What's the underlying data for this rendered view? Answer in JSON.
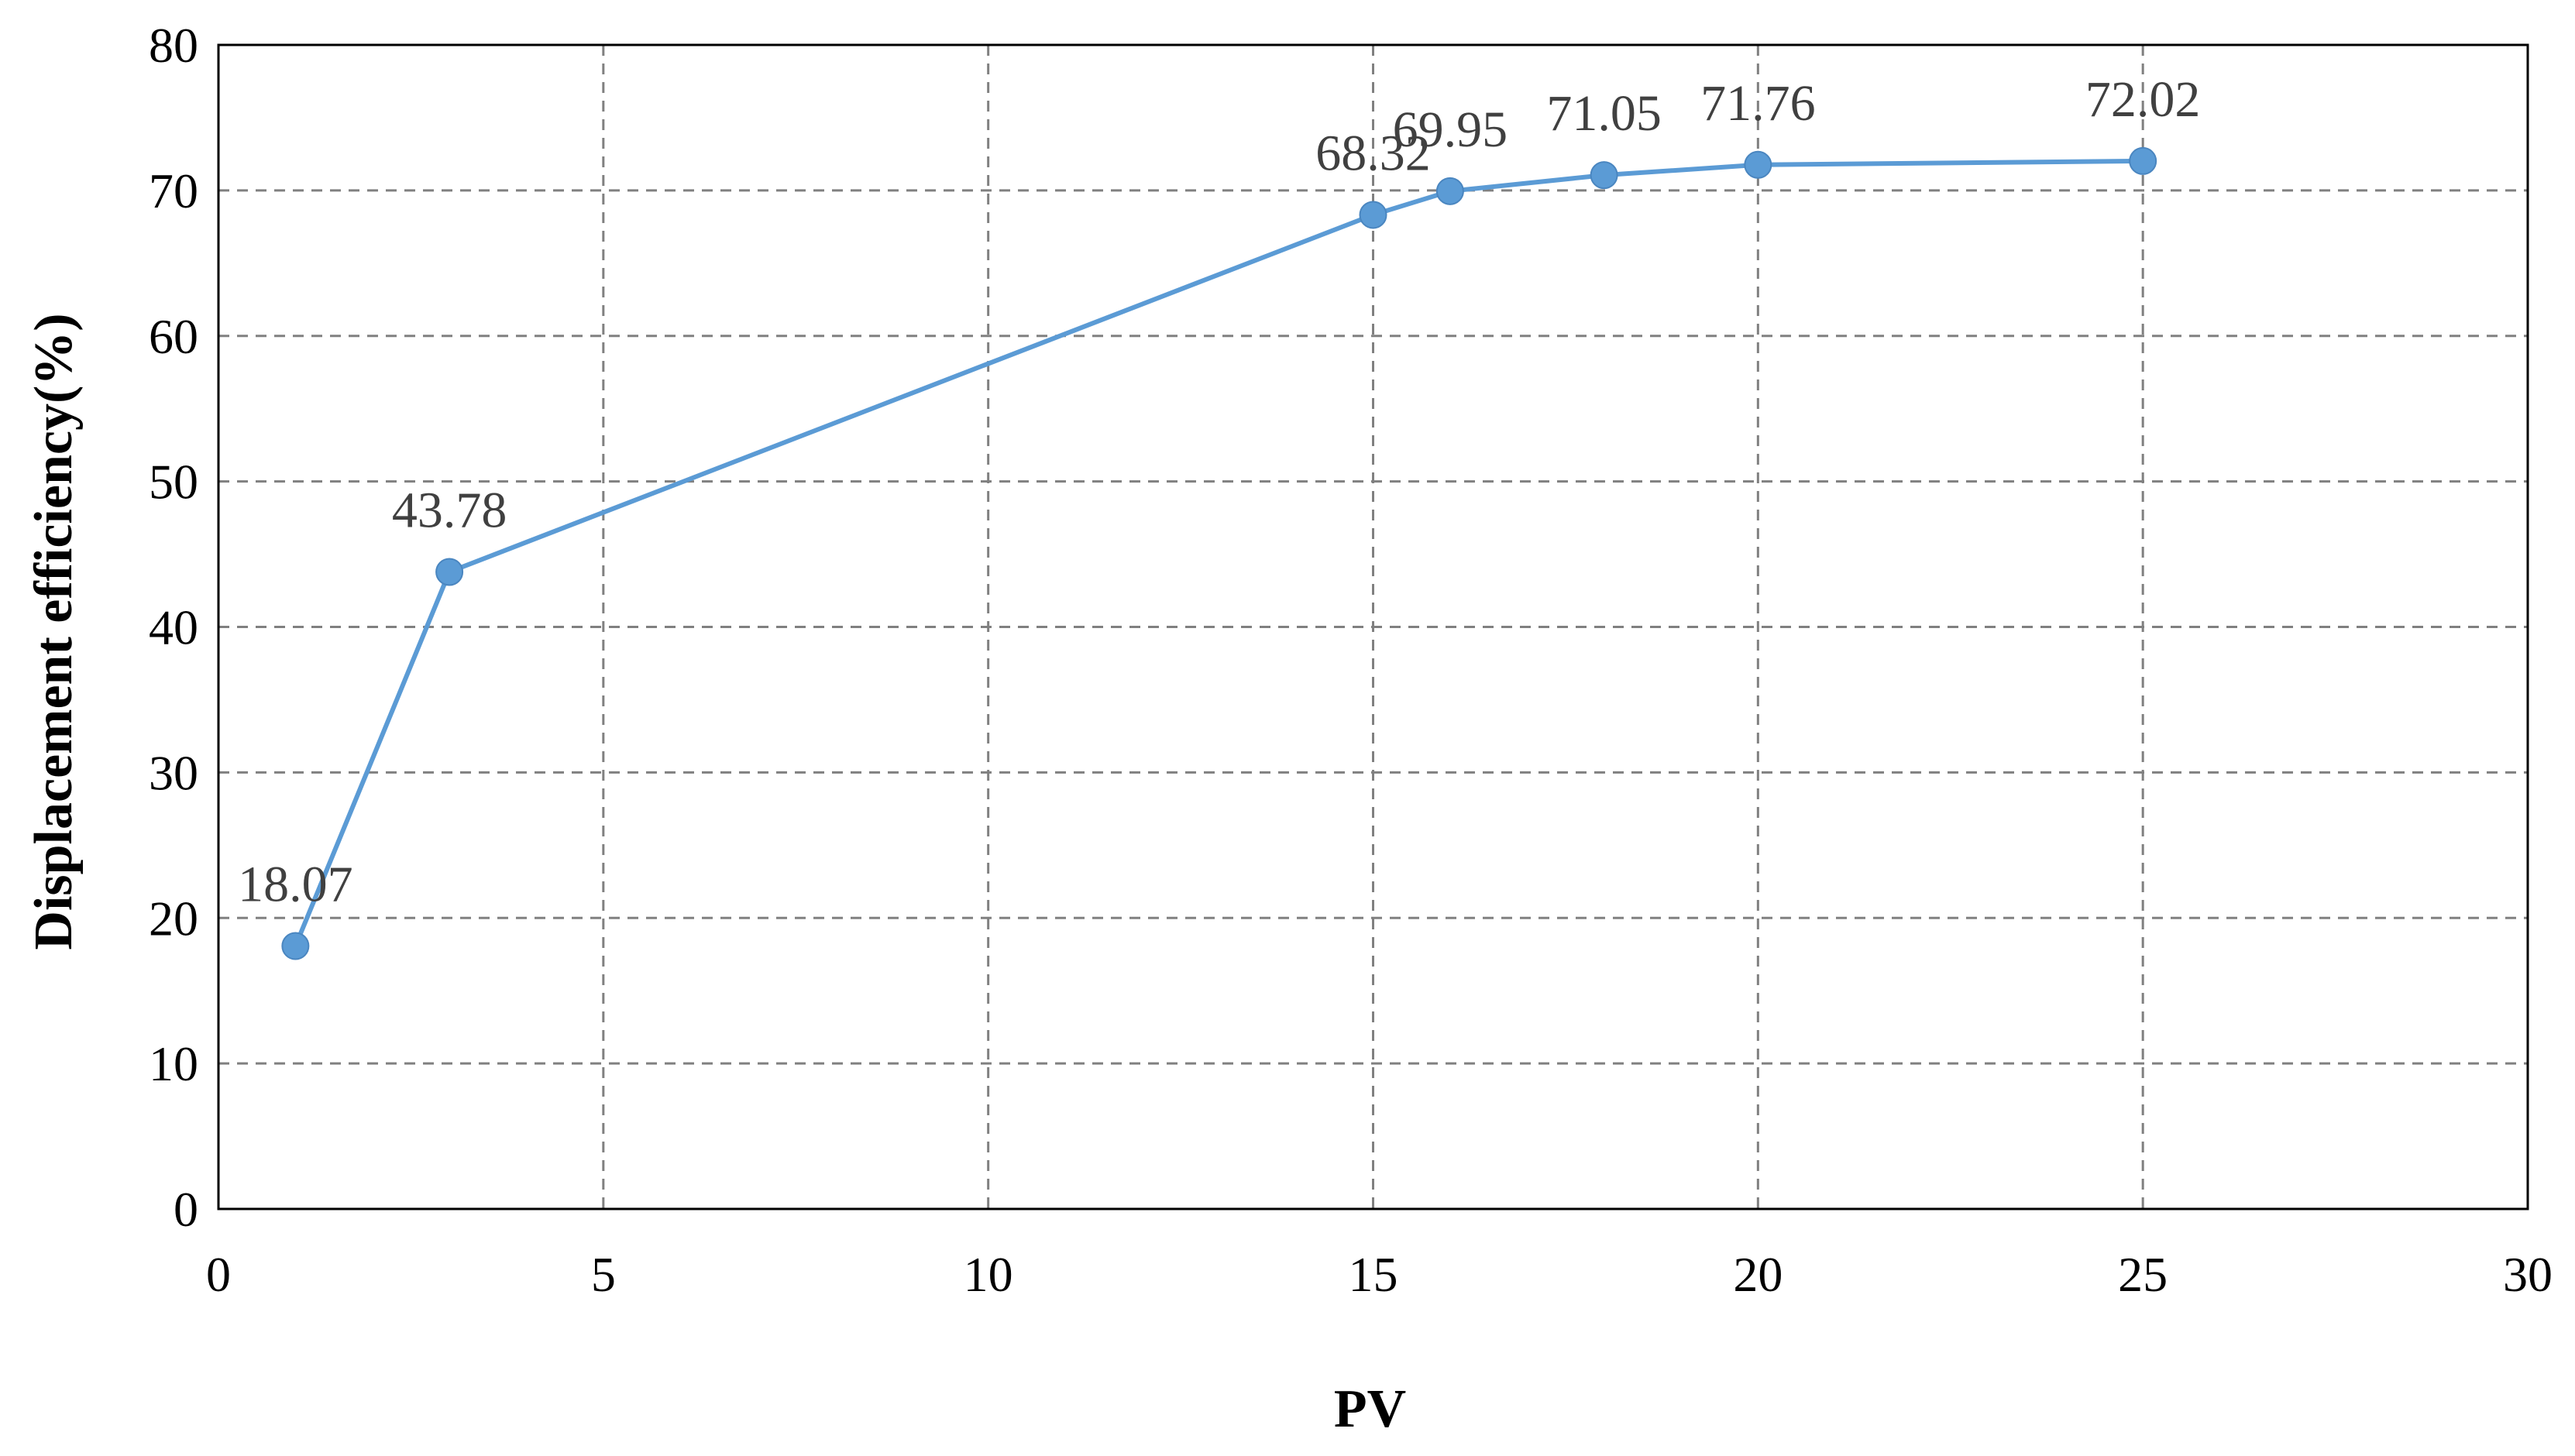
{
  "chart_data": {
    "type": "line",
    "title": "",
    "xlabel": "PV",
    "ylabel": "Displacement efficiency(%)",
    "xlim": [
      0,
      30
    ],
    "ylim": [
      0,
      80
    ],
    "x_ticks": [
      0,
      5,
      10,
      15,
      20,
      25,
      30
    ],
    "y_ticks": [
      0,
      10,
      20,
      30,
      40,
      50,
      60,
      70,
      80
    ],
    "grid": true,
    "legend": "none",
    "series": [
      {
        "color": "#5B9BD5",
        "points": [
          {
            "x": 1,
            "y": 18.07,
            "label": "18.07"
          },
          {
            "x": 3,
            "y": 43.78,
            "label": "43.78"
          },
          {
            "x": 15,
            "y": 68.32,
            "label": "68.32"
          },
          {
            "x": 16,
            "y": 69.95,
            "label": "69.95"
          },
          {
            "x": 18,
            "y": 71.05,
            "label": "71.05"
          },
          {
            "x": 20,
            "y": 71.76,
            "label": "71.76"
          },
          {
            "x": 25,
            "y": 72.02,
            "label": "72.02"
          }
        ]
      }
    ]
  }
}
